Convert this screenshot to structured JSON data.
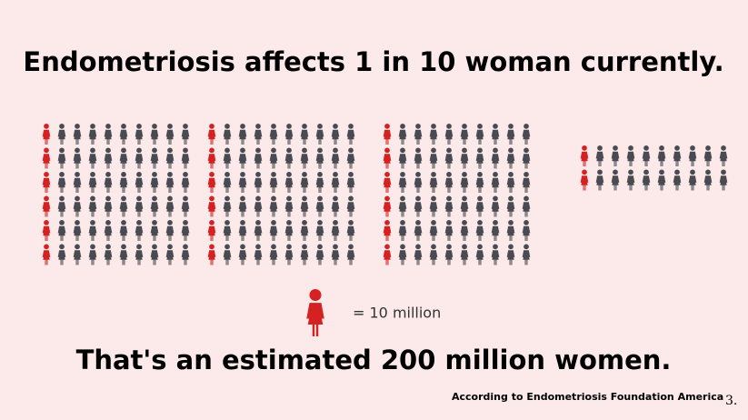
{
  "title": "Endometriosis affects 1 in 10 woman currently.",
  "legend": {
    "label": "= 10 million"
  },
  "subtitle": "That's an estimated 200 million women.",
  "source": "According to Endometriosis Foundation America",
  "page_number": "3."
}
